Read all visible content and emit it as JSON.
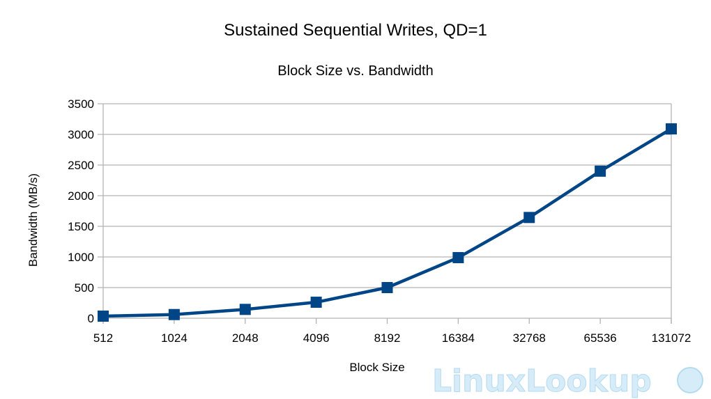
{
  "chart_data": {
    "type": "line",
    "title": "Sustained Sequential Writes, QD=1",
    "subtitle": "Block Size vs. Bandwidth",
    "xlabel": "Block Size",
    "ylabel": "Bandwidth (MB/s)",
    "categories": [
      "512",
      "1024",
      "2048",
      "4096",
      "8192",
      "16384",
      "32768",
      "65536",
      "131072"
    ],
    "series": [
      {
        "name": "Bandwidth",
        "color": "#004586",
        "marker": "square",
        "values": [
          34,
          60,
          144,
          261,
          500,
          989,
          1644,
          2400,
          3090
        ]
      }
    ],
    "ylim": [
      0,
      3500
    ],
    "yticks": [
      0,
      500,
      1000,
      1500,
      2000,
      2500,
      3000,
      3500
    ],
    "grid": true,
    "legend": "none"
  },
  "watermark": "LinuxLookup"
}
